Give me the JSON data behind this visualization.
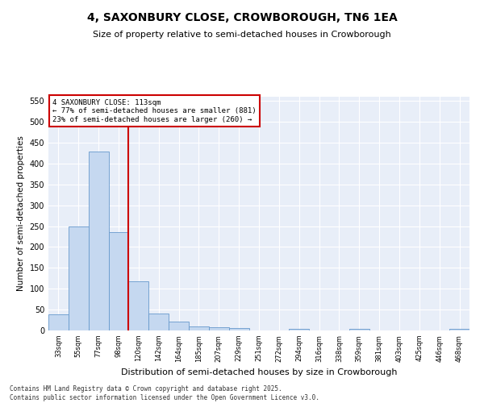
{
  "title": "4, SAXONBURY CLOSE, CROWBOROUGH, TN6 1EA",
  "subtitle": "Size of property relative to semi-detached houses in Crowborough",
  "xlabel": "Distribution of semi-detached houses by size in Crowborough",
  "ylabel": "Number of semi-detached properties",
  "categories": [
    "33sqm",
    "55sqm",
    "77sqm",
    "98sqm",
    "120sqm",
    "142sqm",
    "164sqm",
    "185sqm",
    "207sqm",
    "229sqm",
    "251sqm",
    "272sqm",
    "294sqm",
    "316sqm",
    "338sqm",
    "359sqm",
    "381sqm",
    "403sqm",
    "425sqm",
    "446sqm",
    "468sqm"
  ],
  "values": [
    38,
    250,
    428,
    235,
    118,
    40,
    22,
    10,
    8,
    5,
    0,
    0,
    3,
    0,
    0,
    3,
    0,
    0,
    0,
    0,
    3
  ],
  "bar_color": "#c5d8f0",
  "bar_edge_color": "#6699cc",
  "vline_x_index": 3.5,
  "vline_color": "#cc0000",
  "property_label": "4 SAXONBURY CLOSE: 113sqm",
  "smaller_pct": "77%",
  "smaller_n": 881,
  "larger_pct": "23%",
  "larger_n": 260,
  "annotation_box_color": "#cc0000",
  "ylim": [
    0,
    560
  ],
  "yticks": [
    0,
    50,
    100,
    150,
    200,
    250,
    300,
    350,
    400,
    450,
    500,
    550
  ],
  "bg_color": "#e8eef8",
  "footer": "Contains HM Land Registry data © Crown copyright and database right 2025.\nContains public sector information licensed under the Open Government Licence v3.0.",
  "title_fontsize": 10,
  "subtitle_fontsize": 8
}
